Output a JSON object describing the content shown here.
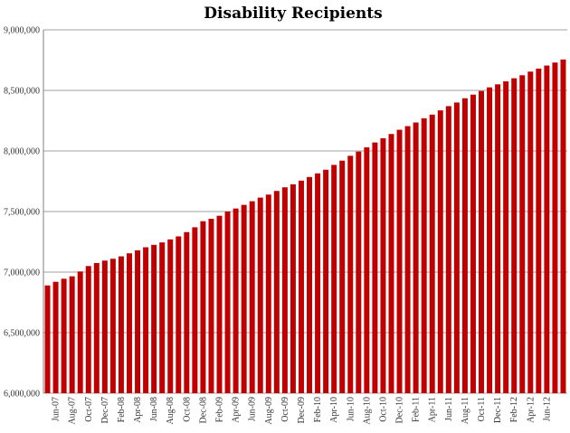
{
  "chart_data": {
    "type": "bar",
    "title": "Disability Recipients",
    "xlabel": "",
    "ylabel": "",
    "ylim": [
      6000000,
      9000000
    ],
    "y_ticks": [
      6000000,
      6500000,
      7000000,
      7500000,
      8000000,
      8500000,
      9000000
    ],
    "y_tick_labels": [
      "6,000,000",
      "6,500,000",
      "7,000,000",
      "7,500,000",
      "8,000,000",
      "8,500,000",
      "9,000,000"
    ],
    "grid": true,
    "colors": {
      "bar": "#c00000",
      "grid": "#a0a0a0",
      "axis": "#808080"
    },
    "categories": [
      "May-07",
      "Jun-07",
      "Jul-07",
      "Aug-07",
      "Sep-07",
      "Oct-07",
      "Nov-07",
      "Dec-07",
      "Jan-08",
      "Feb-08",
      "Mar-08",
      "Apr-08",
      "May-08",
      "Jun-08",
      "Jul-08",
      "Aug-08",
      "Sep-08",
      "Oct-08",
      "Nov-08",
      "Dec-08",
      "Jan-09",
      "Feb-09",
      "Mar-09",
      "Apr-09",
      "May-09",
      "Jun-09",
      "Jul-09",
      "Aug-09",
      "Sep-09",
      "Oct-09",
      "Nov-09",
      "Dec-09",
      "Jan-10",
      "Feb-10",
      "Mar-10",
      "Apr-10",
      "May-10",
      "Jun-10",
      "Jul-10",
      "Aug-10",
      "Sep-10",
      "Oct-10",
      "Nov-10",
      "Dec-10",
      "Jan-11",
      "Feb-11",
      "Mar-11",
      "Apr-11",
      "May-11",
      "Jun-11",
      "Jul-11",
      "Aug-11",
      "Sep-11",
      "Oct-11",
      "Nov-11",
      "Dec-11",
      "Jan-12",
      "Feb-12",
      "Mar-12",
      "Apr-12",
      "May-12",
      "Jun-12",
      "Jul-12",
      "Aug-12"
    ],
    "shown_x_labels": [
      "Jun-07",
      "Aug-07",
      "Oct-07",
      "Dec-07",
      "Feb-08",
      "Apr-08",
      "Jun-08",
      "Aug-08",
      "Oct-08",
      "Dec-08",
      "Feb-09",
      "Apr-09",
      "Jun-09",
      "Aug-09",
      "Oct-09",
      "Dec-09",
      "Feb-10",
      "Apr-10",
      "Jun-10",
      "Aug-10",
      "Oct-10",
      "Dec-10",
      "Feb-11",
      "Apr-11",
      "Jun-11",
      "Aug-11",
      "Oct-11",
      "Dec-11",
      "Feb-12",
      "Apr-12",
      "Jun-12"
    ],
    "values": [
      6890000,
      6920000,
      6945000,
      6965000,
      7005000,
      7050000,
      7075000,
      7095000,
      7110000,
      7130000,
      7155000,
      7180000,
      7205000,
      7225000,
      7245000,
      7270000,
      7295000,
      7330000,
      7370000,
      7420000,
      7440000,
      7465000,
      7500000,
      7525000,
      7555000,
      7585000,
      7615000,
      7640000,
      7670000,
      7700000,
      7725000,
      7755000,
      7785000,
      7815000,
      7845000,
      7885000,
      7920000,
      7960000,
      7995000,
      8030000,
      8070000,
      8105000,
      8140000,
      8175000,
      8205000,
      8235000,
      8270000,
      8300000,
      8335000,
      8370000,
      8400000,
      8435000,
      8465000,
      8495000,
      8525000,
      8550000,
      8575000,
      8600000,
      8625000,
      8655000,
      8680000,
      8705000,
      8730000,
      8755000
    ]
  }
}
